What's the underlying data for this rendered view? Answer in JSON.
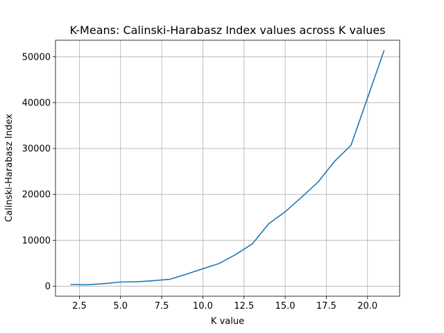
{
  "chart_data": {
    "type": "line",
    "title": "K-Means: Calinski-Harabasz Index values across K values",
    "xlabel": "K value",
    "ylabel": "Calinski-Harabasz Index",
    "xlim": [
      1.05,
      21.95
    ],
    "ylim": [
      -2200,
      53600
    ],
    "grid": true,
    "x_ticks": [
      2.5,
      5.0,
      7.5,
      10.0,
      12.5,
      15.0,
      17.5,
      20.0
    ],
    "x_tick_labels": [
      "2.5",
      "5.0",
      "7.5",
      "10.0",
      "12.5",
      "15.0",
      "17.5",
      "20.0"
    ],
    "y_ticks": [
      0,
      10000,
      20000,
      30000,
      40000,
      50000
    ],
    "y_tick_labels": [
      "0",
      "10000",
      "20000",
      "30000",
      "40000",
      "50000"
    ],
    "series": [
      {
        "color": "#1f77b4",
        "x": [
          2,
          3,
          4,
          5,
          6,
          7,
          8,
          9,
          10,
          11,
          12,
          13,
          14,
          15,
          16,
          17,
          18,
          19,
          20,
          21
        ],
        "values": [
          350,
          300,
          550,
          900,
          950,
          1200,
          1500,
          2600,
          3800,
          4950,
          6900,
          9200,
          13600,
          16200,
          19400,
          22700,
          27200,
          30700,
          41000,
          51300
        ]
      }
    ]
  }
}
